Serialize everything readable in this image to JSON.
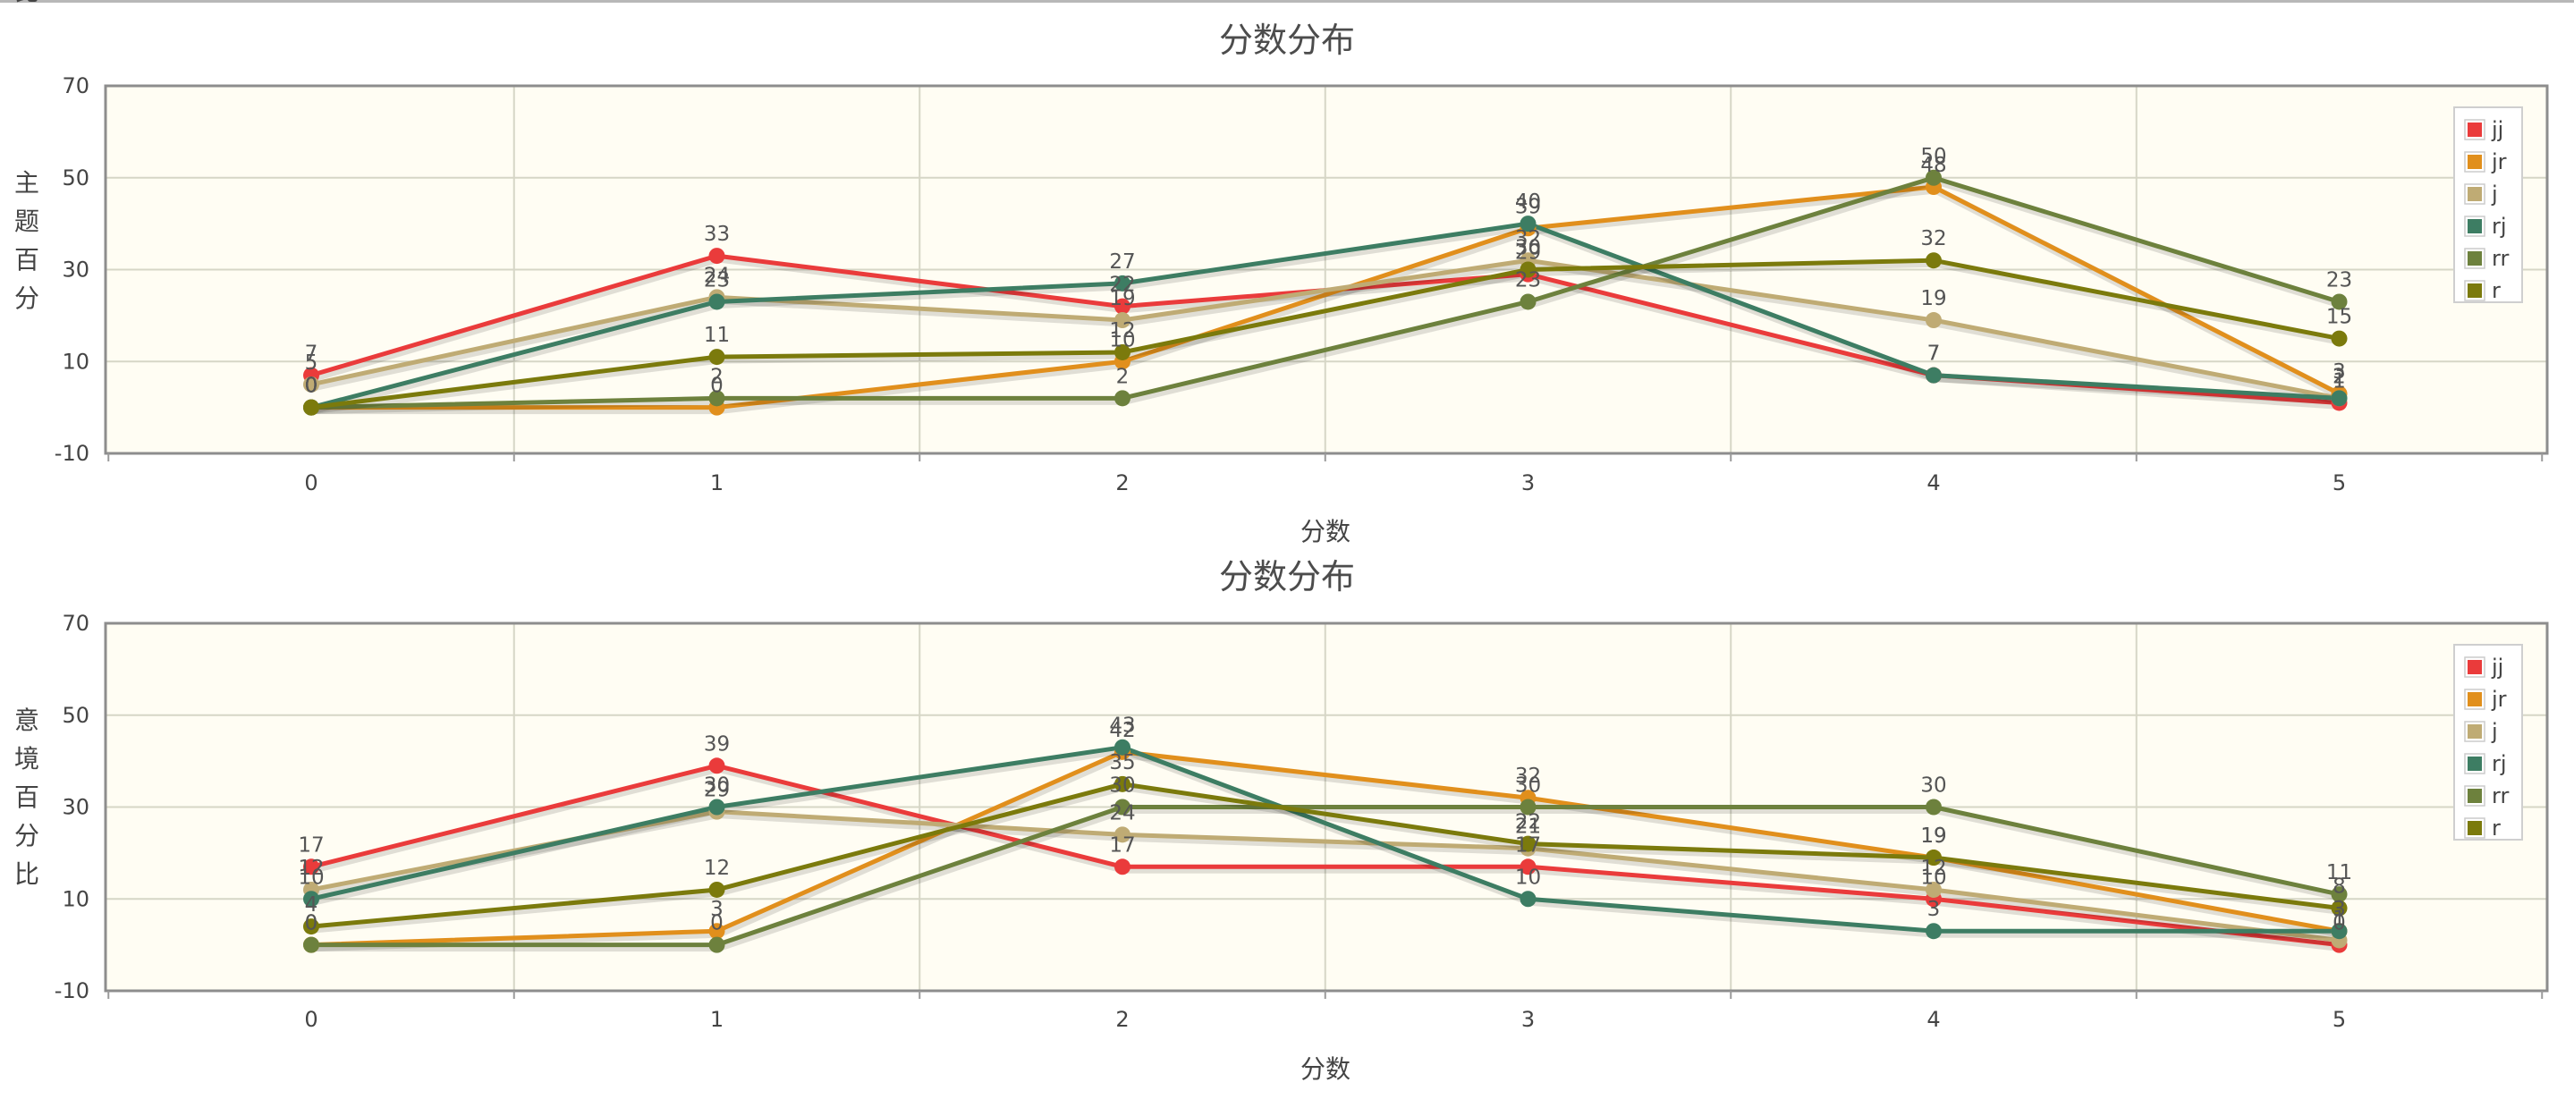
{
  "chart_data": [
    {
      "type": "line",
      "title": "分数分布",
      "xlabel": "分数",
      "ylabel": "主题百分比",
      "x": [
        0,
        1,
        2,
        3,
        4,
        5
      ],
      "ylim": [
        -10,
        70
      ],
      "yticks": [
        -10,
        10,
        30,
        50,
        70
      ],
      "grid": true,
      "legend": "top-right",
      "series": [
        {
          "name": "jj",
          "color": "#ea3b3b",
          "values": [
            7,
            33,
            22,
            29,
            7,
            1
          ]
        },
        {
          "name": "jr",
          "color": "#e18f1c",
          "values": [
            0,
            0,
            10,
            39,
            48,
            3
          ]
        },
        {
          "name": "j",
          "color": "#bfab74",
          "values": [
            5,
            24,
            19,
            32,
            19,
            2
          ]
        },
        {
          "name": "rj",
          "color": "#3d7d63",
          "values": [
            0,
            23,
            27,
            40,
            7,
            2
          ]
        },
        {
          "name": "rr",
          "color": "#6d813d",
          "values": [
            0,
            2,
            2,
            23,
            50,
            23
          ]
        },
        {
          "name": "r",
          "color": "#7b7a0c",
          "values": [
            0,
            11,
            12,
            30,
            32,
            15
          ]
        }
      ]
    },
    {
      "type": "line",
      "title": "分数分布",
      "xlabel": "分数",
      "ylabel": "意境百分比",
      "x": [
        0,
        1,
        2,
        3,
        4,
        5
      ],
      "ylim": [
        -10,
        70
      ],
      "yticks": [
        -10,
        10,
        30,
        50,
        70
      ],
      "grid": true,
      "legend": "top-right",
      "series": [
        {
          "name": "jj",
          "color": "#ea3b3b",
          "values": [
            17,
            39,
            17,
            17,
            10,
            0
          ]
        },
        {
          "name": "jr",
          "color": "#e18f1c",
          "values": [
            0,
            3,
            42,
            32,
            19,
            3
          ]
        },
        {
          "name": "j",
          "color": "#bfab74",
          "values": [
            12,
            29,
            24,
            21,
            12,
            1
          ]
        },
        {
          "name": "rj",
          "color": "#3d7d63",
          "values": [
            10,
            30,
            43,
            10,
            3,
            3
          ]
        },
        {
          "name": "rr",
          "color": "#6d813d",
          "values": [
            0,
            0,
            30,
            30,
            30,
            11
          ]
        },
        {
          "name": "r",
          "color": "#7b7a0c",
          "values": [
            4,
            12,
            35,
            22,
            19,
            8
          ]
        }
      ]
    }
  ]
}
